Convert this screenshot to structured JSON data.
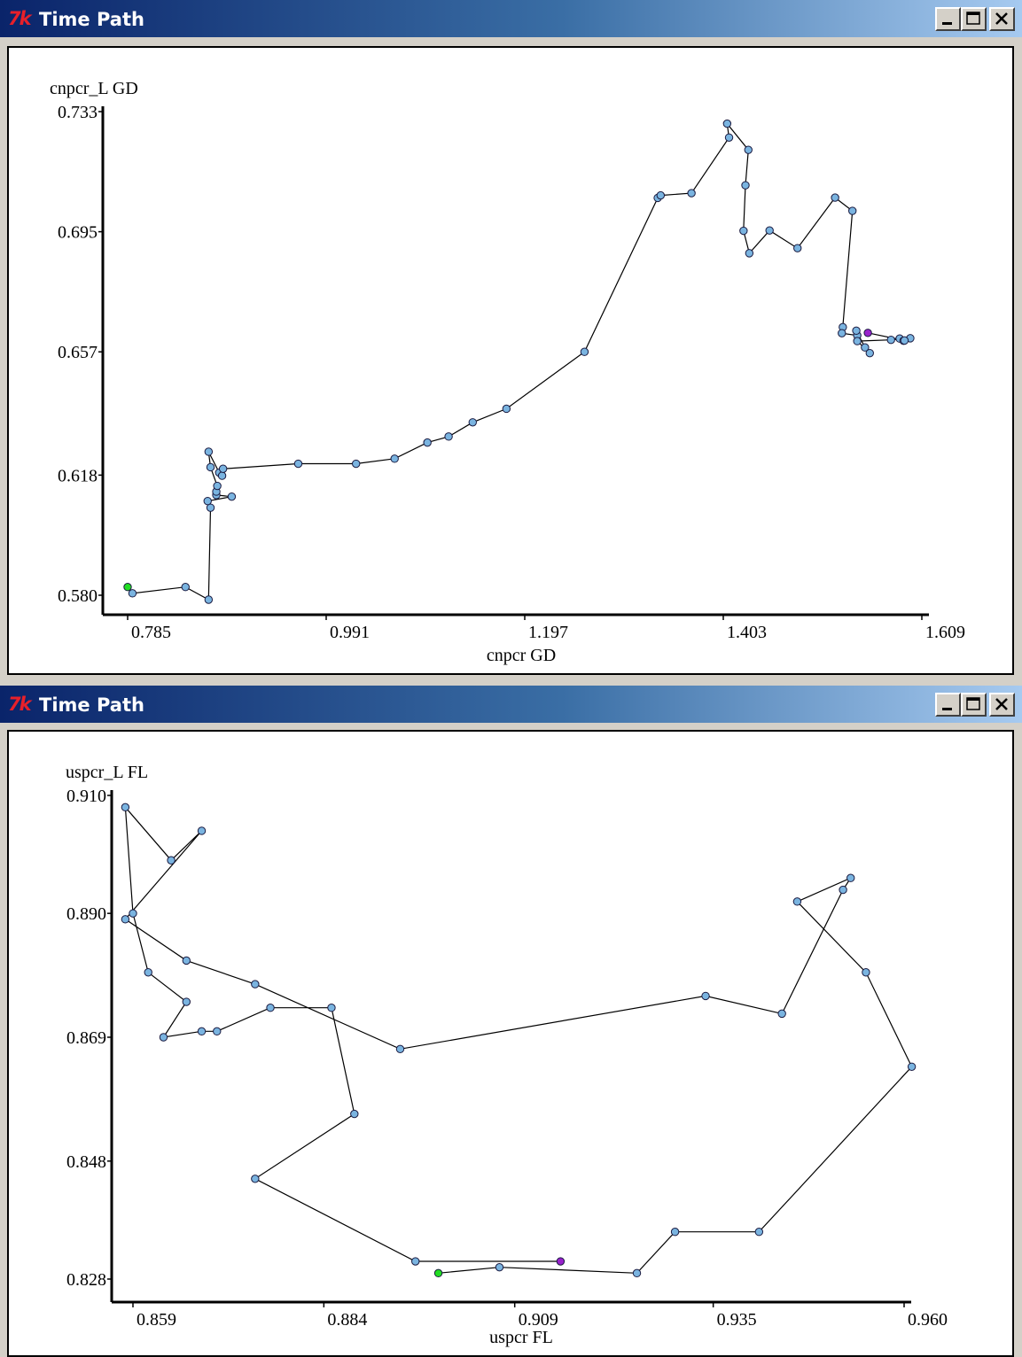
{
  "windows": [
    {
      "title": "Time Path",
      "icon": "tk-feather-icon",
      "controls": [
        "minimize-icon",
        "maximize-icon",
        "close-icon"
      ],
      "chart_data": {
        "type": "line",
        "xlabel": "cnpcr GD",
        "ylabel": "cnpcr_L GD",
        "xticks": [
          "0.785",
          "0.991",
          "1.197",
          "1.403",
          "1.609"
        ],
        "yticks": [
          "0.733",
          "0.695",
          "0.657",
          "0.618",
          "0.580"
        ],
        "xlim": [
          0.785,
          1.609
        ],
        "ylim": [
          0.58,
          0.733
        ],
        "marker_color": "#7ab4e0",
        "start_color": "#22dd22",
        "end_color": "#9922cc",
        "x": [
          0.785,
          0.79,
          0.845,
          0.869,
          0.871,
          0.868,
          0.893,
          0.877,
          0.877,
          0.878,
          0.871,
          0.869,
          0.88,
          0.883,
          0.884,
          0.962,
          1.022,
          1.062,
          1.096,
          1.118,
          1.143,
          1.178,
          1.259,
          1.335,
          1.338,
          1.37,
          1.409,
          1.407,
          1.429,
          1.426,
          1.424,
          1.43,
          1.451,
          1.48,
          1.519,
          1.537,
          1.527,
          1.526,
          1.542,
          1.541,
          1.55,
          1.555,
          1.542,
          1.577,
          1.597,
          1.586,
          1.59,
          1.591,
          1.553
        ],
        "y": [
          0.5826,
          0.5806,
          0.5826,
          0.5786,
          0.6077,
          0.6098,
          0.6112,
          0.6117,
          0.6128,
          0.6146,
          0.6205,
          0.6254,
          0.6188,
          0.6178,
          0.62,
          0.6216,
          0.6216,
          0.6232,
          0.6283,
          0.6302,
          0.6347,
          0.639,
          0.657,
          0.7057,
          0.7065,
          0.7072,
          0.7248,
          0.7292,
          0.7209,
          0.7097,
          0.6953,
          0.6882,
          0.6954,
          0.6898,
          0.7058,
          0.7016,
          0.6648,
          0.6629,
          0.6622,
          0.6637,
          0.6584,
          0.6566,
          0.6604,
          0.6608,
          0.6613,
          0.6612,
          0.6605,
          0.6606,
          0.663
        ],
        "points_order_note": ""
      }
    },
    {
      "title": "Time Path",
      "icon": "tk-feather-icon",
      "controls": [
        "minimize-icon",
        "maximize-icon",
        "close-icon"
      ],
      "chart_data": {
        "type": "line",
        "xlabel": "uspcr FL",
        "ylabel": "uspcr_L FL",
        "xticks": [
          "0.859",
          "0.884",
          "0.909",
          "0.935",
          "0.960"
        ],
        "yticks": [
          "0.910",
          "0.890",
          "0.869",
          "0.848",
          "0.828"
        ],
        "xlim": [
          0.859,
          0.96
        ],
        "ylim": [
          0.828,
          0.91
        ],
        "marker_color": "#7ab4e0",
        "start_color": "#22dd22",
        "end_color": "#9922cc",
        "x": [
          0.899,
          0.907,
          0.925,
          0.93,
          0.941,
          0.961,
          0.955,
          0.946,
          0.953,
          0.952,
          0.944,
          0.934,
          0.894,
          0.875,
          0.866,
          0.858,
          0.868,
          0.864,
          0.858,
          0.859,
          0.861,
          0.866,
          0.863,
          0.868,
          0.87,
          0.877,
          0.885,
          0.888,
          0.875,
          0.896,
          0.915
        ],
        "y": [
          0.829,
          0.83,
          0.829,
          0.836,
          0.836,
          0.864,
          0.88,
          0.892,
          0.896,
          0.894,
          0.873,
          0.876,
          0.867,
          0.878,
          0.882,
          0.889,
          0.904,
          0.899,
          0.908,
          0.89,
          0.88,
          0.875,
          0.869,
          0.87,
          0.87,
          0.874,
          0.874,
          0.856,
          0.845,
          0.831,
          0.831
        ],
        "points_order_note": ""
      }
    }
  ]
}
